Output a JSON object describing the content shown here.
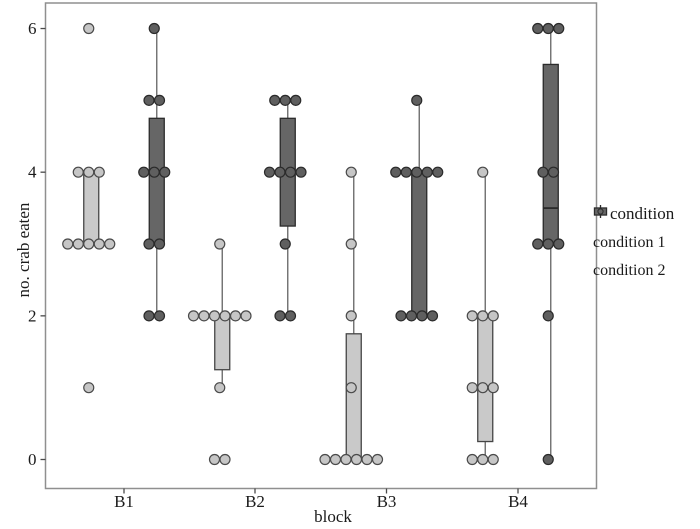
{
  "chart_data": {
    "type": "boxplot",
    "title": "",
    "xlabel": "block",
    "ylabel": "no. crab eaten",
    "categories": [
      "B1",
      "B2",
      "B3",
      "B4"
    ],
    "yticks": [
      0,
      2,
      4,
      6
    ],
    "ylim": [
      0,
      6
    ],
    "grid": false,
    "legend": {
      "title": "condition",
      "position": "right",
      "entries": [
        {
          "label": "condition 1",
          "fill": "#c9c9c9",
          "stroke": "#454545"
        },
        {
          "label": "condition 2",
          "fill": "#666666",
          "stroke": "#2b2b2b"
        }
      ]
    },
    "series": [
      {
        "name": "condition 1",
        "fill": "#c9c9c9",
        "stroke": "#454545",
        "point_fill": "#c6c6c6",
        "point_stroke": "#4a4a4a",
        "boxes": [
          {
            "category": "B1",
            "q1": 3,
            "median": 3,
            "q3": 4,
            "whisker_low": 3,
            "whisker_high": 4
          },
          {
            "category": "B2",
            "q1": 1.25,
            "median": 2,
            "q3": 2,
            "whisker_low": 1,
            "whisker_high": 3
          },
          {
            "category": "B3",
            "q1": 0,
            "median": 0,
            "q3": 1.75,
            "whisker_low": 0,
            "whisker_high": 4
          },
          {
            "category": "B4",
            "q1": 0.25,
            "median": 1,
            "q3": 2,
            "whisker_low": 0,
            "whisker_high": 4
          }
        ],
        "points": [
          [
            [
              6,
              1
            ],
            [
              4,
              3
            ],
            [
              3,
              5
            ],
            [
              1,
              1
            ]
          ],
          [
            [
              3,
              1
            ],
            [
              2,
              6
            ],
            [
              1,
              1
            ],
            [
              0,
              2
            ]
          ],
          [
            [
              4,
              1
            ],
            [
              3,
              1
            ],
            [
              2,
              1
            ],
            [
              1,
              1
            ],
            [
              0,
              6
            ]
          ],
          [
            [
              4,
              1
            ],
            [
              2,
              3
            ],
            [
              1,
              3
            ],
            [
              0,
              3
            ]
          ]
        ]
      },
      {
        "name": "condition 2",
        "fill": "#666666",
        "stroke": "#2b2b2b",
        "point_fill": "#5f5f5f",
        "point_stroke": "#2a2a2a",
        "boxes": [
          {
            "category": "B1",
            "q1": 3,
            "median": 4,
            "q3": 4.75,
            "whisker_low": 2,
            "whisker_high": 6
          },
          {
            "category": "B2",
            "q1": 3.25,
            "median": 4,
            "q3": 4.75,
            "whisker_low": 2,
            "whisker_high": 5
          },
          {
            "category": "B3",
            "q1": 2,
            "median": 4,
            "q3": 4,
            "whisker_low": 2,
            "whisker_high": 5
          },
          {
            "category": "B4",
            "q1": 3,
            "median": 3.5,
            "q3": 5.5,
            "whisker_low": 0,
            "whisker_high": 6
          }
        ],
        "points": [
          [
            [
              6,
              1
            ],
            [
              5,
              2
            ],
            [
              4,
              3
            ],
            [
              3,
              2
            ],
            [
              2,
              2
            ]
          ],
          [
            [
              5,
              3
            ],
            [
              4,
              4
            ],
            [
              3,
              1
            ],
            [
              2,
              2
            ]
          ],
          [
            [
              5,
              1
            ],
            [
              4,
              5
            ],
            [
              2,
              4
            ]
          ],
          [
            [
              6,
              3
            ],
            [
              4,
              2
            ],
            [
              3,
              3
            ],
            [
              2,
              1
            ],
            [
              0,
              1
            ]
          ]
        ]
      }
    ],
    "colors": {
      "panel_border": "#8f8f8f",
      "whisker": "#6e6e6e",
      "tick": "#4a4a4a",
      "text": "#1b1b1b",
      "background": "#ffffff"
    }
  }
}
